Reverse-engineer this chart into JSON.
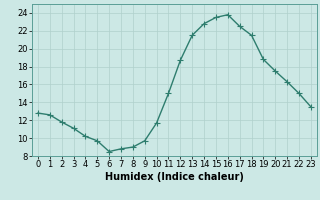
{
  "x": [
    0,
    1,
    2,
    3,
    4,
    5,
    6,
    7,
    8,
    9,
    10,
    11,
    12,
    13,
    14,
    15,
    16,
    17,
    18,
    19,
    20,
    21,
    22,
    23
  ],
  "y": [
    12.8,
    12.6,
    11.8,
    11.1,
    10.2,
    9.7,
    8.5,
    8.8,
    9.0,
    9.7,
    11.7,
    15.0,
    18.7,
    21.5,
    22.8,
    23.5,
    23.8,
    22.5,
    21.5,
    18.8,
    17.5,
    16.3,
    15.0,
    13.5
  ],
  "line_color": "#2e7d6e",
  "marker": "+",
  "marker_size": 4,
  "linewidth": 1.0,
  "bg_color": "#cce8e5",
  "grid_color": "#b0d0cc",
  "xlabel": "Humidex (Indice chaleur)",
  "xlabel_fontsize": 7,
  "tick_fontsize": 6,
  "ylim": [
    8,
    25
  ],
  "xlim": [
    -0.5,
    23.5
  ],
  "yticks": [
    8,
    10,
    12,
    14,
    16,
    18,
    20,
    22,
    24
  ],
  "xticks": [
    0,
    1,
    2,
    3,
    4,
    5,
    6,
    7,
    8,
    9,
    10,
    11,
    12,
    13,
    14,
    15,
    16,
    17,
    18,
    19,
    20,
    21,
    22,
    23
  ]
}
